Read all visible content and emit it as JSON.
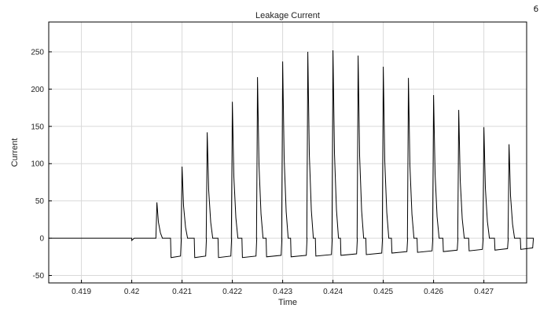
{
  "window": {
    "corner_glyph": "б"
  },
  "colors": {
    "background": "#ffffff",
    "axes_box": "#000000",
    "grid": "#d9d9d9",
    "line": "#000000",
    "text": "#222222"
  },
  "chart_data": {
    "type": "line",
    "title": "Leakage Current",
    "xlabel": "Time",
    "ylabel": "Current",
    "xlim": [
      0.41835,
      0.42785
    ],
    "ylim": [
      -60,
      290
    ],
    "xticks": [
      0.419,
      0.42,
      0.421,
      0.422,
      0.423,
      0.424,
      0.425,
      0.426,
      0.427
    ],
    "xtick_labels": [
      "0.419",
      "0.42",
      "0.421",
      "0.422",
      "0.423",
      "0.424",
      "0.425",
      "0.426",
      "0.427"
    ],
    "yticks": [
      -50,
      0,
      50,
      100,
      150,
      200,
      250
    ],
    "ytick_labels": [
      "-50",
      "0",
      "50",
      "100",
      "150",
      "200",
      "250"
    ],
    "grid": true,
    "legend": "none",
    "series": [
      {
        "pulse_times": [
          0.4205,
          0.421,
          0.4215,
          0.422,
          0.4225,
          0.423,
          0.4235,
          0.424,
          0.4245,
          0.425,
          0.4255,
          0.426,
          0.4265,
          0.427,
          0.4275
        ],
        "peaks": [
          48,
          96,
          142,
          183,
          216,
          237,
          250,
          252,
          245,
          230,
          215,
          192,
          172,
          149,
          126
        ],
        "troughs": [
          -26,
          -26,
          -26,
          -26,
          -25,
          -25,
          -24,
          -23,
          -22,
          -20,
          -19,
          -18,
          -17,
          -16,
          -15
        ]
      }
    ]
  }
}
